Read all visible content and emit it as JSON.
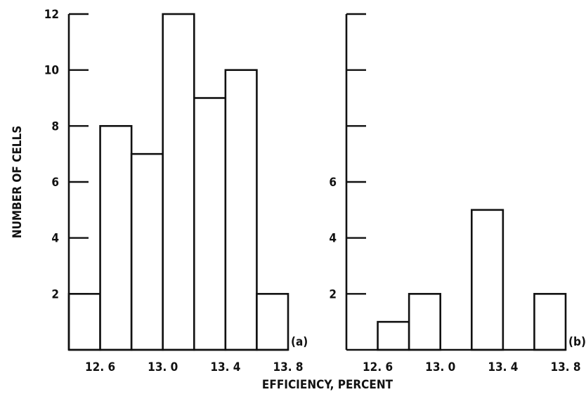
{
  "chart_data": [
    {
      "type": "bar",
      "panel_label": "(a)",
      "bin_edges": [
        12.4,
        12.6,
        12.8,
        13.0,
        13.2,
        13.4,
        13.6,
        13.8
      ],
      "values": [
        2,
        8,
        7,
        12,
        9,
        10,
        2
      ],
      "xlim": [
        12.4,
        13.8
      ],
      "ylim": [
        0,
        12
      ],
      "x_ticks": [
        12.6,
        13.0,
        13.4,
        13.8
      ],
      "x_tick_labels": [
        "12. 6",
        "13. 0",
        "13. 4",
        "13. 8"
      ],
      "y_ticks": [
        0,
        2,
        4,
        6,
        8,
        10,
        12
      ],
      "y_tick_labels": [
        "",
        "2",
        "4",
        "6",
        "8",
        "10",
        "12"
      ]
    },
    {
      "type": "bar",
      "panel_label": "(b)",
      "bin_edges": [
        12.6,
        12.8,
        13.0,
        13.2,
        13.4,
        13.6,
        13.8
      ],
      "values": [
        1,
        2,
        0,
        5,
        0,
        2
      ],
      "xlim": [
        12.4,
        13.8
      ],
      "ylim": [
        0,
        12
      ],
      "x_ticks": [
        12.6,
        13.0,
        13.4,
        13.8
      ],
      "x_tick_labels": [
        "12. 6",
        "13. 0",
        "13. 4",
        "13. 8"
      ],
      "y_ticks": [
        0,
        2,
        4,
        6,
        8,
        10,
        12
      ],
      "y_tick_labels": [
        "",
        "2",
        "4",
        "6",
        "",
        "",
        ""
      ]
    }
  ],
  "ylabel": "NUMBER OF CELLS",
  "xlabel": "EFFICIENCY, PERCENT"
}
